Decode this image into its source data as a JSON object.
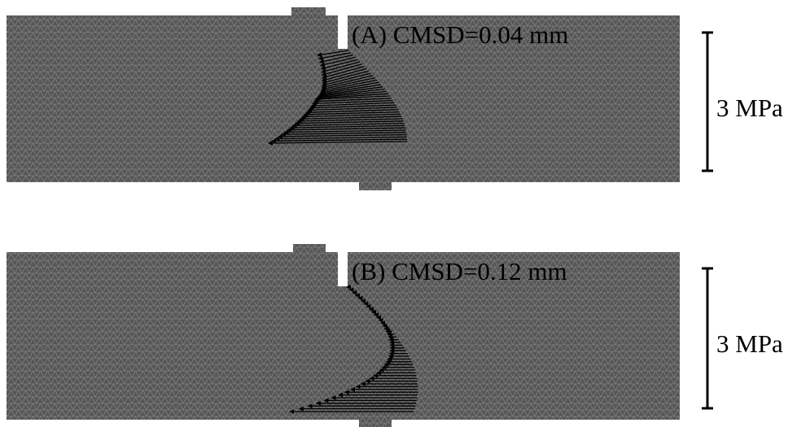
{
  "panels": [
    {
      "label": "(A) CMSD=0.04 mm",
      "scale_label": "3 MPa"
    },
    {
      "label": "(B) CMSD=0.12 mm",
      "scale_label": "3 MPa"
    }
  ]
}
